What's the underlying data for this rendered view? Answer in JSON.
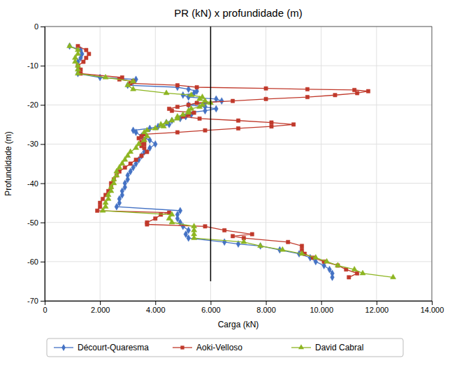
{
  "chart_data": {
    "type": "line",
    "title": "PR (kN) x profundidade (m)",
    "xlabel": "Carga (kN)",
    "ylabel": "Profundidade (m)",
    "xlim": [
      0,
      14000
    ],
    "ylim": [
      -70,
      0
    ],
    "xticks": [
      0,
      {
        "value": 2000,
        "label": "2.000"
      },
      {
        "value": 4000,
        "label": "4.000"
      },
      {
        "value": 6000,
        "label": "6.000"
      },
      {
        "value": 8000,
        "label": "8.000"
      },
      {
        "value": 10000,
        "label": "10.000"
      },
      {
        "value": 12000,
        "label": "12.000"
      },
      {
        "value": 14000,
        "label": "14.000"
      }
    ],
    "yticks": [
      0,
      -10,
      -20,
      -30,
      -40,
      -50,
      -60,
      -70
    ],
    "grid": true,
    "legend": "bottom",
    "vline": {
      "x": 6000,
      "ymin": -65,
      "ymax": 0,
      "color": "#000000"
    },
    "series": [
      {
        "name": "Décourt-Quaresma",
        "color": "#4472C4",
        "marker": "diamond",
        "x": [
          900,
          1300,
          1350,
          1300,
          1200,
          1200,
          1200,
          1200,
          2000,
          3300,
          3200,
          3000,
          4800,
          5200,
          5500,
          5400,
          5000,
          5200,
          6200,
          6400,
          5800,
          5200,
          5800,
          6200,
          5800,
          5200,
          5300,
          5100,
          4900,
          4600,
          4400,
          4500,
          4100,
          3800,
          3200,
          3300,
          3500,
          3800,
          4000,
          3800,
          3600,
          3500,
          3400,
          3300,
          3200,
          3100,
          3000,
          3000,
          2900,
          2900,
          2800,
          2800,
          2700,
          2700,
          2600,
          4900,
          4800,
          4800,
          4900,
          5000,
          5200,
          5100,
          5200,
          6500,
          7000,
          7800,
          8500,
          9200,
          9600,
          9800,
          10100,
          10300,
          10400,
          10400
        ],
        "values": [
          -5,
          -6,
          -7,
          -8,
          -9,
          -10,
          -11,
          -12,
          -13,
          -13.5,
          -14,
          -15,
          -15.5,
          -16,
          -16.5,
          -17,
          -17.5,
          -18,
          -18.5,
          -19,
          -19.5,
          -20,
          -20.5,
          -21,
          -21.5,
          -22,
          -22.5,
          -23,
          -23.5,
          -24,
          -24.5,
          -25,
          -25.5,
          -26,
          -26.5,
          -27,
          -28,
          -29,
          -30,
          -31,
          -32,
          -33,
          -34,
          -35,
          -36,
          -37,
          -38,
          -39,
          -40,
          -41,
          -42,
          -43,
          -44,
          -45,
          -46,
          -47,
          -48,
          -49,
          -50,
          -51,
          -52,
          -53,
          -54,
          -55,
          -55.5,
          -56,
          -57,
          -58,
          -59,
          -60,
          -61,
          -62,
          -63,
          -64
        ]
      },
      {
        "name": "Aoki-Velloso",
        "color": "#C0392B",
        "marker": "square",
        "x": [
          1200,
          1500,
          1600,
          1500,
          1400,
          1200,
          1300,
          1300,
          2800,
          2700,
          3200,
          3100,
          4800,
          5500,
          8000,
          9500,
          11200,
          11700,
          11300,
          10500,
          9500,
          8000,
          6800,
          5500,
          5200,
          4800,
          4500,
          4600,
          5400,
          5200,
          5000,
          5600,
          7000,
          8200,
          9000,
          8200,
          7000,
          5800,
          4800,
          3600,
          3500,
          3400,
          3600,
          3500,
          3600,
          3500,
          3600,
          3700,
          3500,
          3300,
          3100,
          2900,
          2700,
          2600,
          2500,
          2400,
          2400,
          2300,
          2200,
          2100,
          2000,
          2000,
          1900,
          4500,
          4200,
          4000,
          3700,
          3700,
          5800,
          6500,
          7500,
          6800,
          7200,
          8800,
          9300,
          9300,
          9400,
          9700,
          10100,
          10600,
          10900,
          11300,
          11000
        ],
        "values": [
          -5,
          -6,
          -7,
          -8,
          -9,
          -10,
          -11,
          -12,
          -13,
          -13.5,
          -14,
          -14.5,
          -15,
          -15.5,
          -15.8,
          -16,
          -16.2,
          -16.5,
          -17,
          -17.5,
          -18,
          -18.5,
          -19,
          -19.5,
          -20,
          -20.5,
          -21,
          -21.5,
          -22,
          -22.5,
          -23,
          -23.5,
          -24,
          -24.5,
          -25,
          -25.5,
          -26,
          -26.5,
          -27,
          -27.5,
          -28,
          -28.5,
          -29,
          -29.5,
          -30,
          -30.5,
          -31,
          -32,
          -33,
          -34,
          -35,
          -36,
          -37,
          -38,
          -39,
          -40,
          -41,
          -42,
          -43,
          -44,
          -45,
          -46,
          -47,
          -47.5,
          -48,
          -49,
          -50,
          -50.5,
          -51,
          -52,
          -53,
          -53.5,
          -54,
          -55,
          -56,
          -57,
          -58,
          -59,
          -60,
          -61,
          -62,
          -63,
          -64
        ]
      },
      {
        "name": "David Cabral",
        "color": "#8DB521",
        "marker": "triangle",
        "x": [
          900,
          1200,
          1200,
          1100,
          1100,
          1200,
          1200,
          1200,
          2200,
          3200,
          3000,
          3200,
          4400,
          5300,
          5700,
          5600,
          5800,
          6000,
          5700,
          5600,
          5300,
          5200,
          5200,
          5000,
          4800,
          4800,
          4600,
          4400,
          4200,
          4300,
          4000,
          3700,
          3600,
          3700,
          3600,
          3400,
          3300,
          3100,
          3000,
          2900,
          2800,
          2700,
          2600,
          2600,
          2500,
          2500,
          2400,
          2400,
          2300,
          2300,
          2200,
          2200,
          2100,
          4600,
          4500,
          4600,
          5400,
          5400,
          5400,
          5400,
          7200,
          7800,
          8600,
          9300,
          9800,
          10200,
          10600,
          11200,
          11500,
          12600
        ],
        "values": [
          -5,
          -6,
          -7,
          -8,
          -9,
          -10,
          -11,
          -12,
          -13,
          -14,
          -15,
          -16,
          -17,
          -17.5,
          -18,
          -18.5,
          -19,
          -19.5,
          -20,
          -20.5,
          -21,
          -21.5,
          -22,
          -22.5,
          -23,
          -23.5,
          -24,
          -24.5,
          -25,
          -25.5,
          -26,
          -26.5,
          -27,
          -28,
          -29,
          -30,
          -31,
          -32,
          -33,
          -34,
          -35,
          -36,
          -37,
          -38,
          -39,
          -40,
          -41,
          -42,
          -43,
          -44,
          -45,
          -46,
          -47,
          -48,
          -49,
          -50,
          -51,
          -52,
          -53,
          -54,
          -55,
          -56,
          -57,
          -58,
          -59,
          -60,
          -61,
          -62,
          -63,
          -64
        ]
      }
    ]
  }
}
